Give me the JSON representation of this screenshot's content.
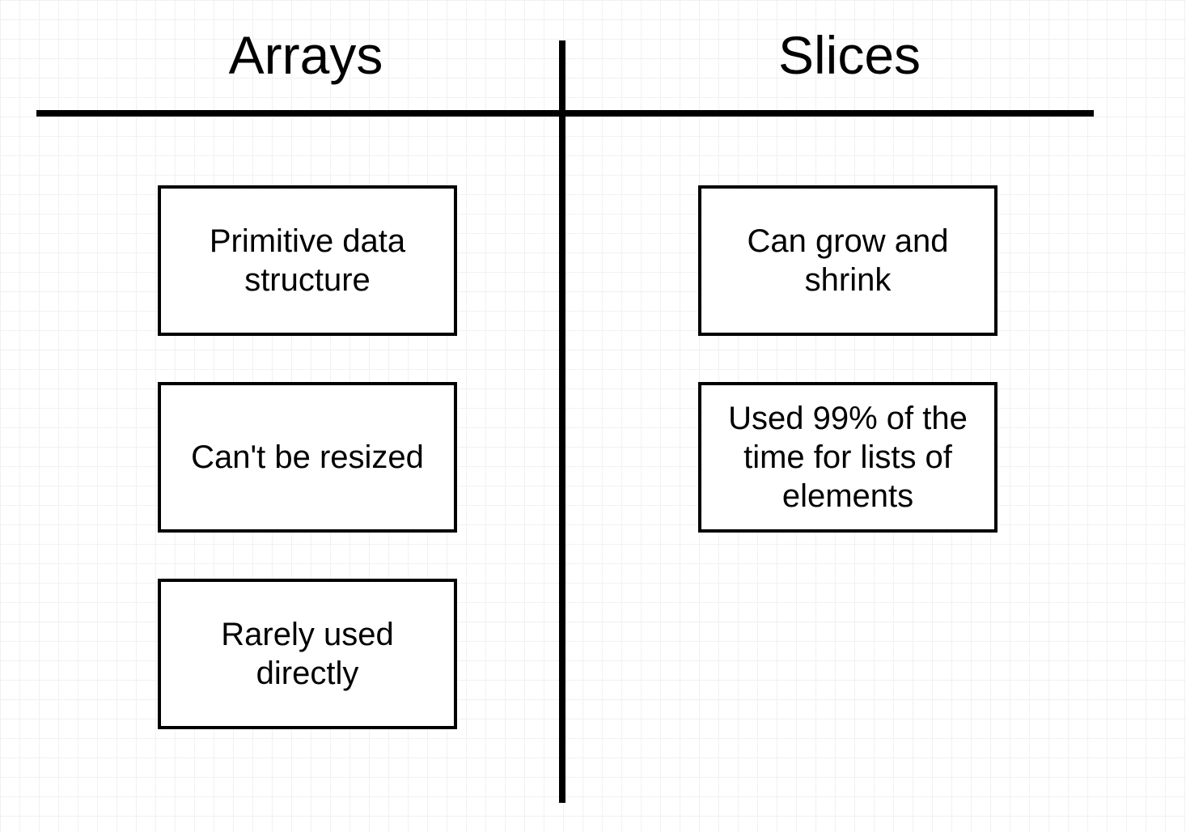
{
  "columns": {
    "left": {
      "title": "Arrays",
      "items": [
        "Primitive data structure",
        "Can't be resized",
        "Rarely used directly"
      ]
    },
    "right": {
      "title": "Slices",
      "items": [
        "Can grow and shrink",
        "Used 99% of the time for lists of elements"
      ]
    }
  },
  "colors": {
    "ink": "#000000",
    "background": "#ffffff",
    "grid": "#f1f1f1"
  }
}
